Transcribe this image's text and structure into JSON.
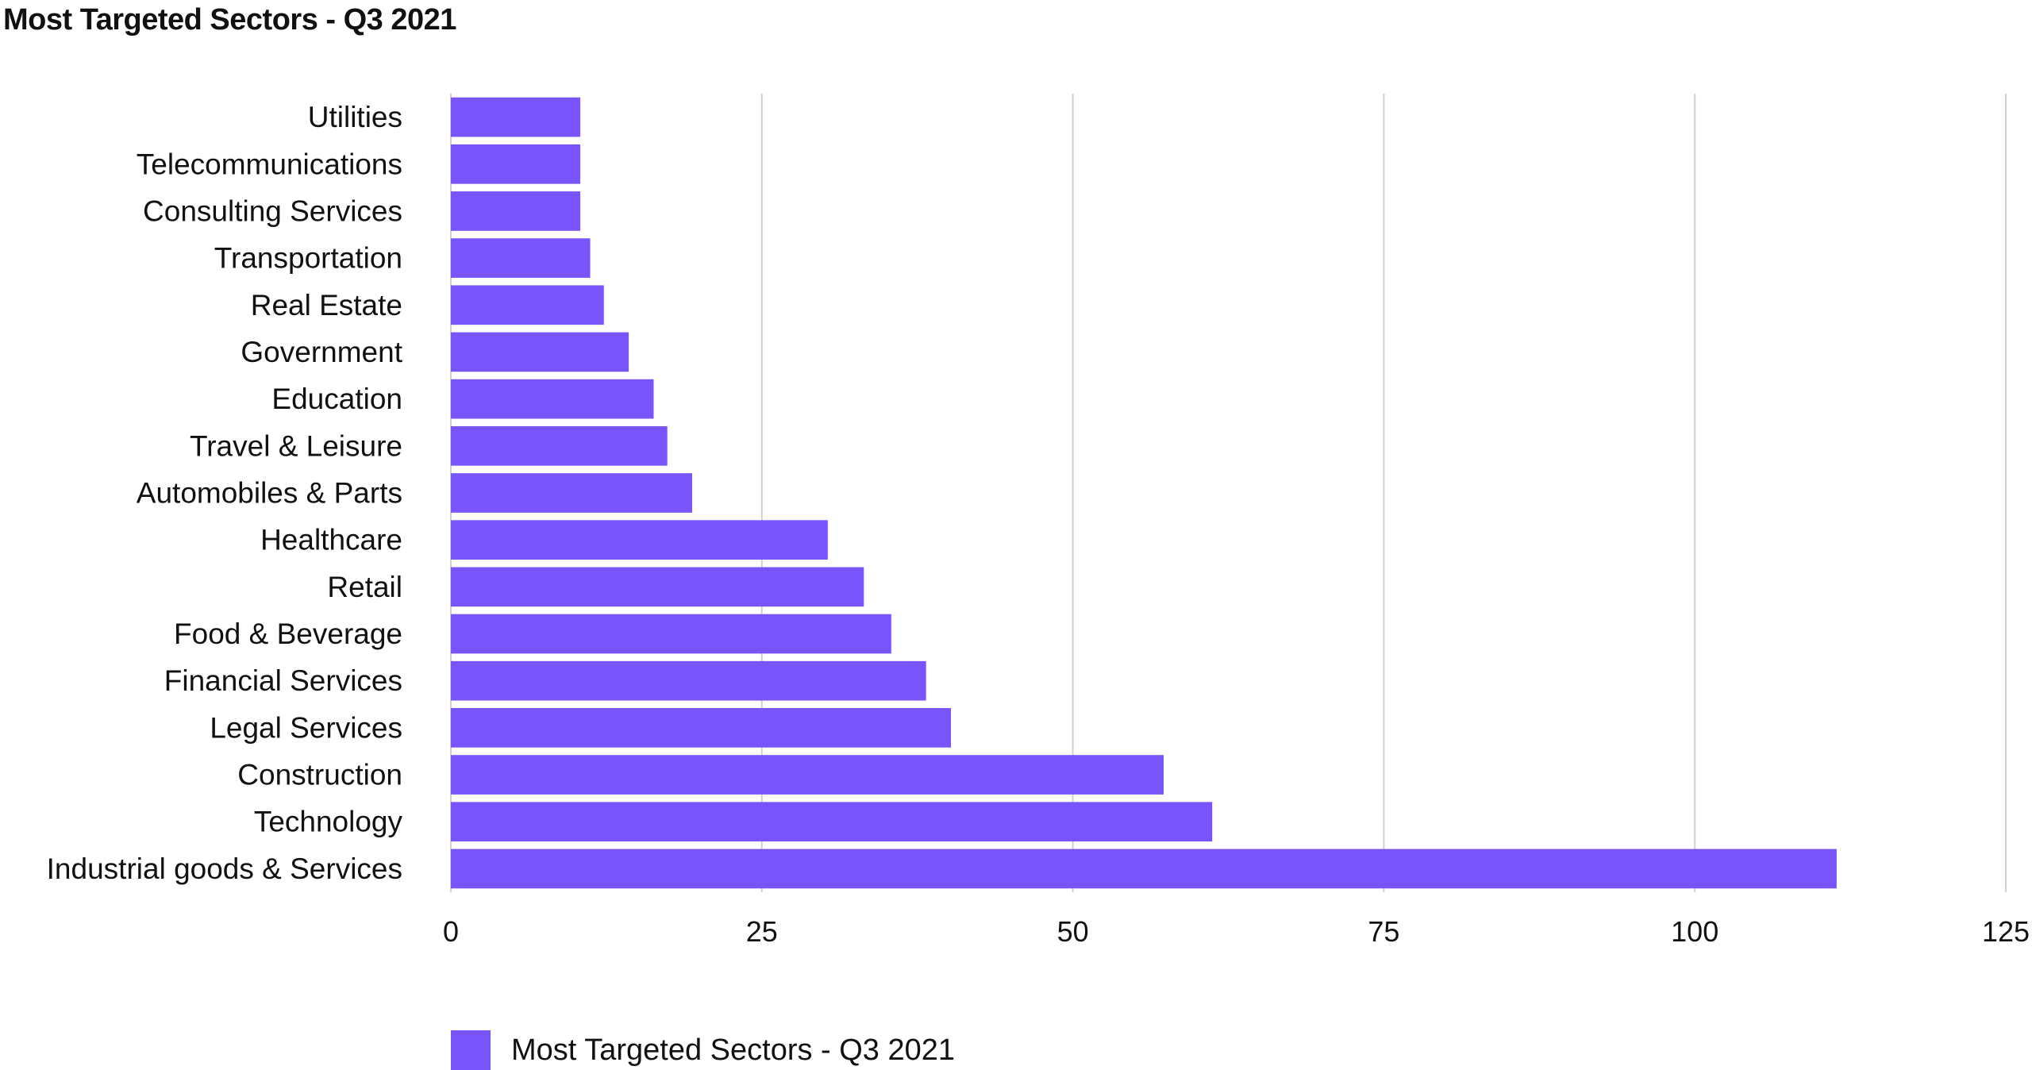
{
  "colors": {
    "bar": "#7855fa",
    "grid": "#d0d0d0",
    "axis_text": "#111111"
  },
  "chart_data": {
    "type": "bar",
    "orientation": "horizontal",
    "title": "Most Targeted Sectors - Q3 2021",
    "xlabel": "",
    "ylabel": "",
    "xlim": [
      0,
      125
    ],
    "xticks": [
      0,
      25,
      50,
      75,
      100,
      125
    ],
    "grid": true,
    "legend_position": "bottom-left",
    "categories": [
      "Utilities",
      "Telecommunications",
      "Consulting Services",
      "Transportation",
      "Real Estate",
      "Government",
      "Education",
      "Travel & Leisure",
      "Automobiles & Parts",
      "Healthcare",
      "Retail",
      "Food & Beverage",
      "Financial Services",
      "Legal Services",
      "Construction",
      "Technology",
      "Industrial goods & Services"
    ],
    "series": [
      {
        "name": "Most Targeted Sectors - Q3 2021",
        "values": [
          10.4,
          10.4,
          10.4,
          11.2,
          12.3,
          14.3,
          16.3,
          17.4,
          19.4,
          30.3,
          33.2,
          35.4,
          38.2,
          40.2,
          57.3,
          61.2,
          111.4
        ]
      }
    ]
  }
}
